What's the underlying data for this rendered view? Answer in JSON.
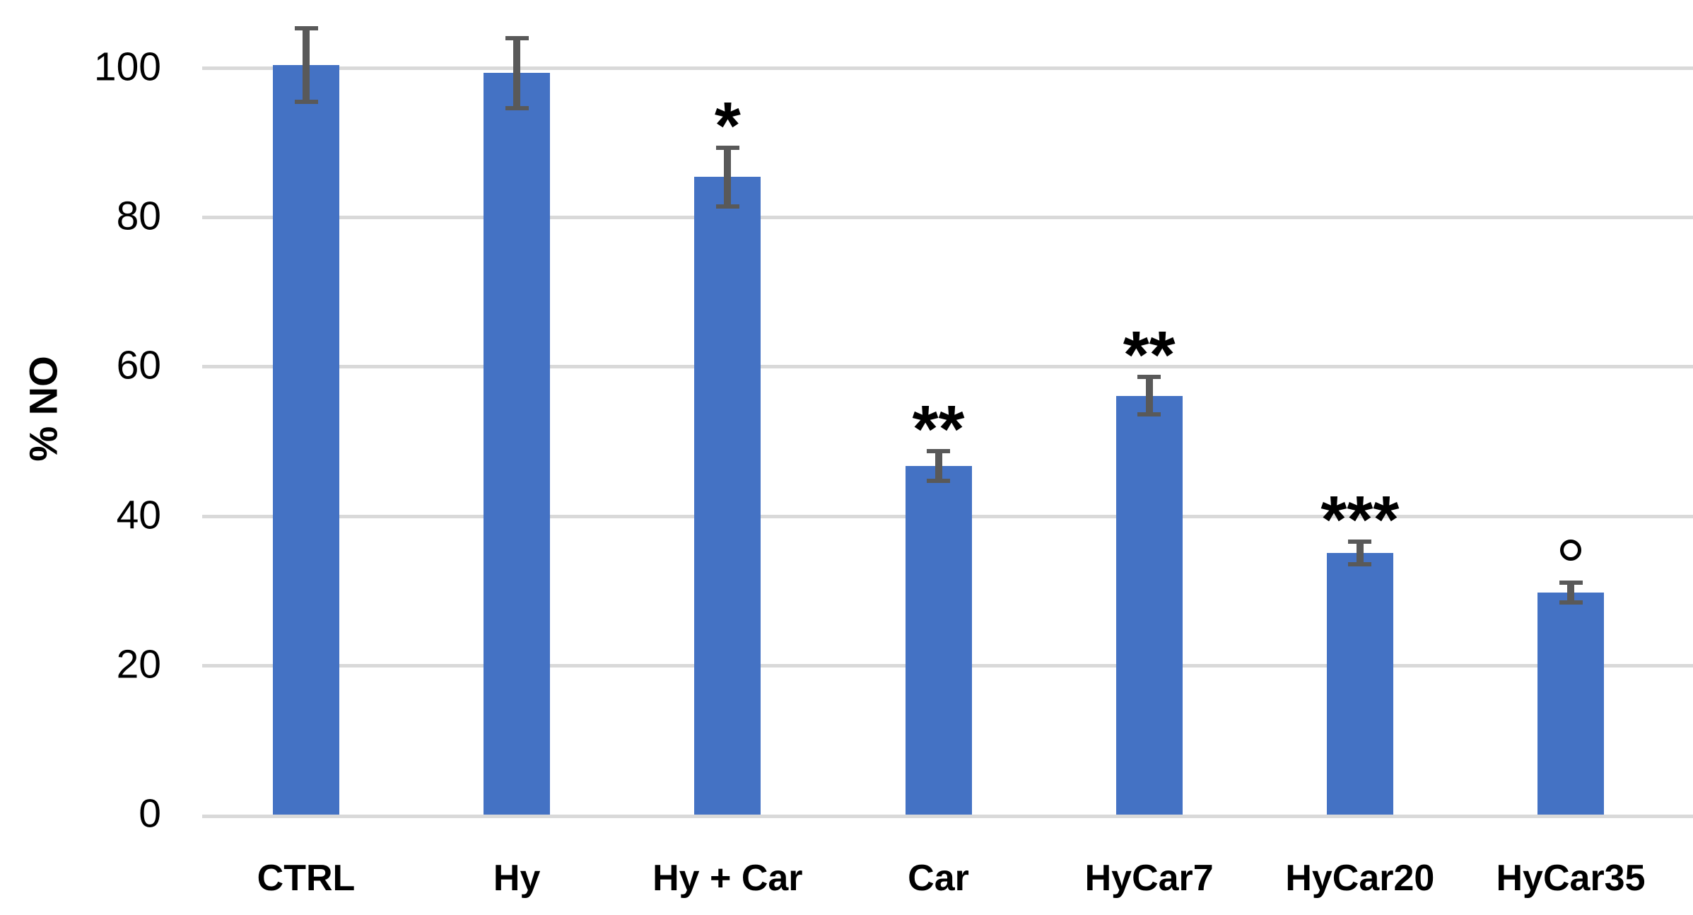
{
  "chart_data": {
    "type": "bar",
    "title": "",
    "ylabel": "% NO",
    "xlabel": "",
    "categories": [
      "CTRL",
      "Hy",
      "Hy + Car",
      "Car",
      "HyCar7",
      "HyCar20",
      "HyCar35"
    ],
    "values": [
      100.4,
      99.3,
      85.4,
      46.7,
      56.1,
      35.0,
      29.7
    ],
    "errors": [
      5.2,
      5.0,
      4.2,
      2.3,
      2.8,
      1.8,
      1.6
    ],
    "significance_markers": [
      "",
      "",
      "*",
      "**",
      "**",
      "***",
      "°"
    ],
    "y_ticks": [
      0,
      20,
      40,
      60,
      80,
      100
    ],
    "ylim": [
      0,
      110
    ],
    "grid": "horizontal-only",
    "legend_position": "none",
    "bar_color": "#4472C4",
    "error_bar_color": "#595959",
    "gridline_color": "#D9D9D9",
    "axis_line_color": "#D9D9D9",
    "text_color": "#000000"
  }
}
